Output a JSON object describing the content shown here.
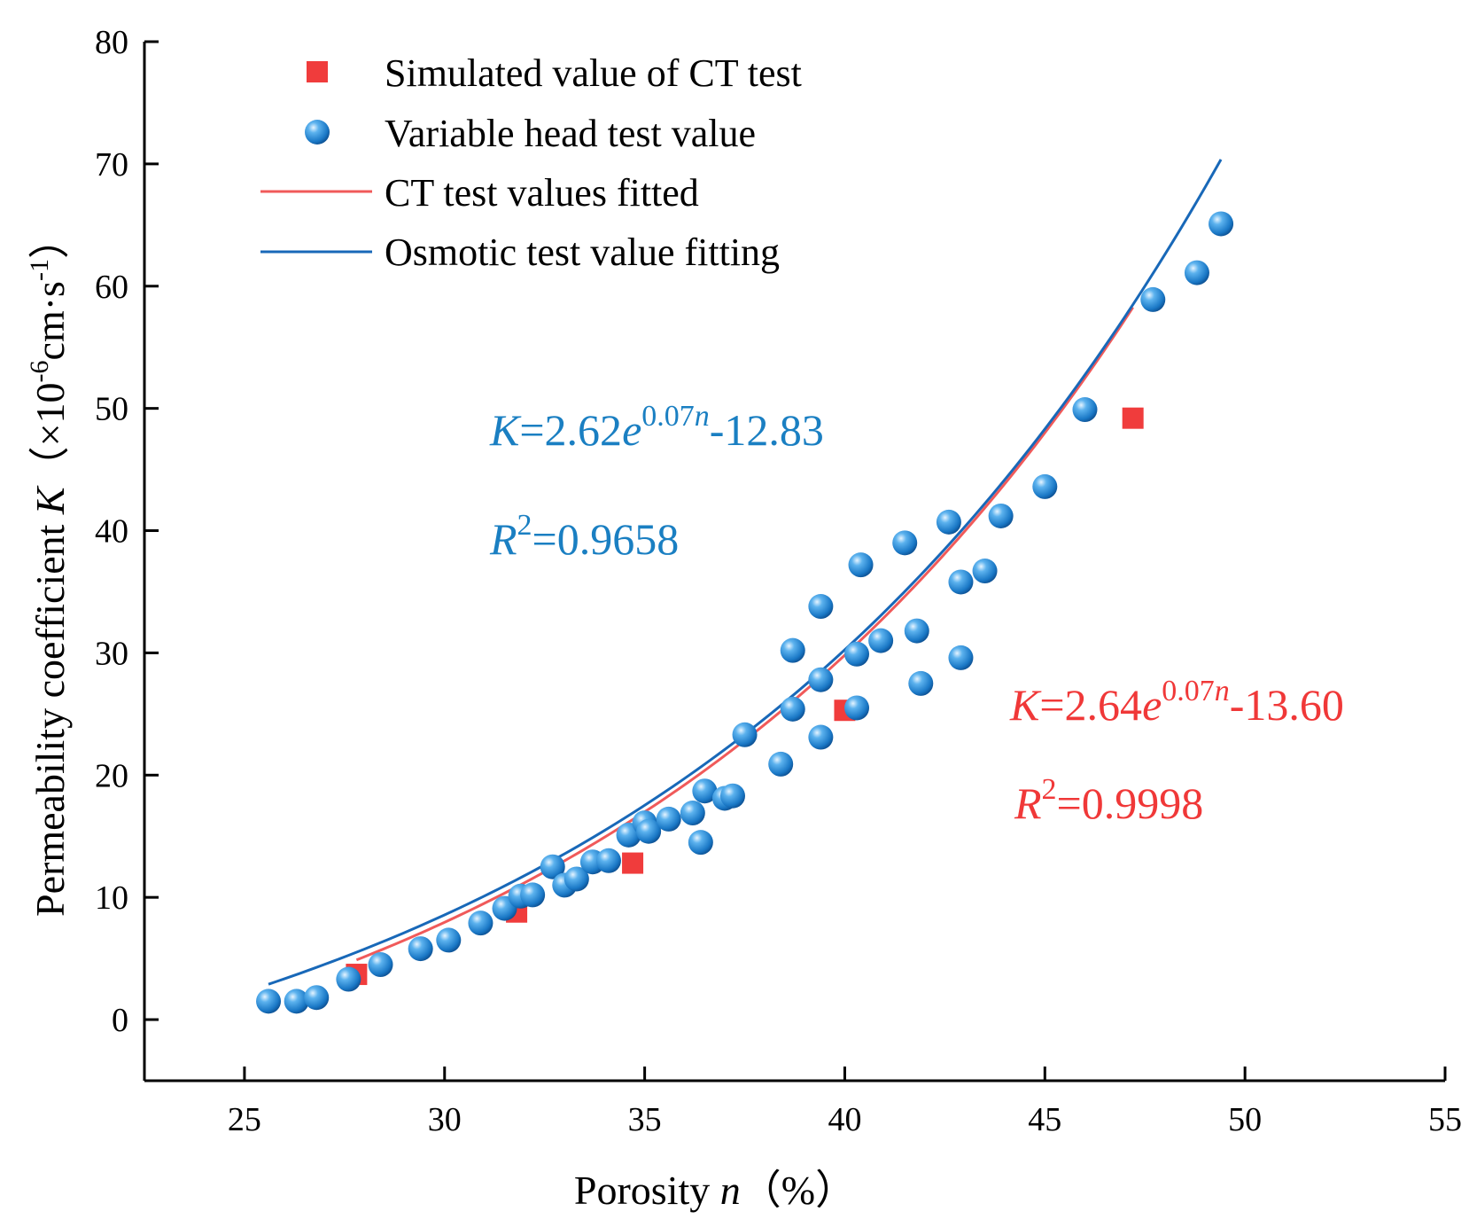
{
  "chart_data": {
    "type": "scatter",
    "xlabel": {
      "text": "Porosity ",
      "var": "n",
      "unit": "（%）"
    },
    "ylabel": {
      "text": "Permeability coefficient ",
      "var": "K",
      "unit_open": "（×10",
      "unit_exp": "-6",
      "unit_mid": "cm·s",
      "unit_exp2": "-1",
      "unit_close": "）"
    },
    "xlim": [
      22.5,
      55
    ],
    "ylim": [
      -5,
      80
    ],
    "xticks": [
      25,
      30,
      35,
      40,
      45,
      50,
      55
    ],
    "yticks": [
      0,
      10,
      20,
      30,
      40,
      50,
      60,
      70,
      80
    ],
    "colors": {
      "ct": "#f03c3c",
      "head": "#1a6fc0",
      "ct_fit": "#f05a5a",
      "osm_fit": "#1868b8",
      "head_eq": "#1a7fc2",
      "ct_eq": "#f03838"
    },
    "series": [
      {
        "name": "Simulated value of CT test",
        "kind": "square",
        "x": [
          27.8,
          31.8,
          34.7,
          40.0,
          47.2
        ],
        "y": [
          3.7,
          8.8,
          12.8,
          25.3,
          49.2
        ]
      },
      {
        "name": "Variable head test value",
        "kind": "sphere",
        "x": [
          25.6,
          26.3,
          26.8,
          27.6,
          28.4,
          29.4,
          30.1,
          30.9,
          31.5,
          31.9,
          32.2,
          32.7,
          33.0,
          33.3,
          33.7,
          34.1,
          34.6,
          35.0,
          35.1,
          35.6,
          36.2,
          36.4,
          36.5,
          37.0,
          37.2,
          37.5,
          38.4,
          38.7,
          38.7,
          39.4,
          39.4,
          39.4,
          40.3,
          40.3,
          40.4,
          40.9,
          41.5,
          41.8,
          41.9,
          42.6,
          42.9,
          42.9,
          43.5,
          43.9,
          45.0,
          46.0,
          47.7,
          48.8,
          49.4
        ],
        "y": [
          1.5,
          1.5,
          1.8,
          3.3,
          4.5,
          5.8,
          6.5,
          7.9,
          9.1,
          10.1,
          10.2,
          12.5,
          11.0,
          11.5,
          12.9,
          13.0,
          15.1,
          16.1,
          15.4,
          16.4,
          16.9,
          14.5,
          18.7,
          18.1,
          18.3,
          23.3,
          20.9,
          25.4,
          30.2,
          33.8,
          27.8,
          23.1,
          29.9,
          25.5,
          37.2,
          31.0,
          39.0,
          31.8,
          27.5,
          40.7,
          35.8,
          29.6,
          36.7,
          41.2,
          43.6,
          49.9,
          58.9,
          61.1,
          65.1
        ]
      },
      {
        "name": "CT test values fitted",
        "kind": "line",
        "a": 2.64,
        "b": 0.07,
        "c": -13.6,
        "x_range": [
          27.8,
          47.2
        ]
      },
      {
        "name": "Osmotic test value fitting",
        "kind": "line",
        "a": 2.62,
        "b": 0.07,
        "c": -12.83,
        "x_range": [
          25.6,
          49.4
        ]
      }
    ],
    "annotations": {
      "head_fit": {
        "var": "K",
        "eq_pre": "=2.62",
        "e": "e",
        "exp": "0.07",
        "exp_var": "n",
        "eq_post": "-12.83",
        "r_var": "R",
        "r_exp": "2",
        "r_val": "=0.9658"
      },
      "ct_fit": {
        "var": "K",
        "eq_pre": "=2.64",
        "e": "e",
        "exp": "0.07",
        "exp_var": "n",
        "eq_post": "-13.60",
        "r_var": "R",
        "r_exp": "2",
        "r_val": "=0.9998"
      }
    },
    "legend_position": "top-left"
  }
}
